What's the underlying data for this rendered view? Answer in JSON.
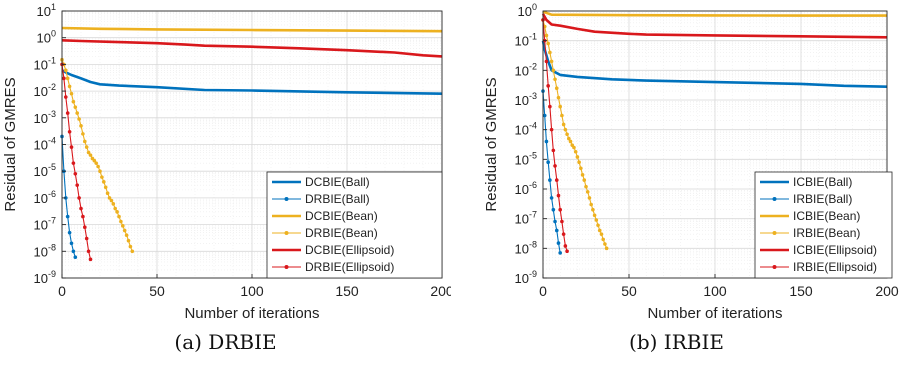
{
  "colors": {
    "blue": "#0072BD",
    "yellow": "#EDB120",
    "red": "#D9181C"
  },
  "chart_data": [
    {
      "type": "line",
      "caption": "(a) DRBIE",
      "xlabel": "Number of iterations",
      "ylabel": "Residual of GMRES",
      "xlim": [
        0,
        200
      ],
      "ylim_log10": [
        -9,
        1
      ],
      "y_scale": "log",
      "xticks": [
        "0",
        "50",
        "100",
        "150",
        "200"
      ],
      "grid": true,
      "legend_position": "bottom-right",
      "series": [
        {
          "name": "DCBIE(Ball)",
          "color": "blue",
          "marker": false,
          "lw": 2.6,
          "x": [
            0,
            2,
            5,
            10,
            15,
            20,
            30,
            50,
            75,
            100,
            150,
            200
          ],
          "y": [
            0.06,
            0.05,
            0.04,
            0.03,
            0.022,
            0.018,
            0.016,
            0.014,
            0.011,
            0.0105,
            0.009,
            0.008
          ]
        },
        {
          "name": "DRBIE(Ball)",
          "color": "blue",
          "marker": true,
          "lw": 1.1,
          "x": [
            0,
            1,
            2,
            3,
            4,
            5,
            6,
            7
          ],
          "y": [
            0.0002,
            1e-05,
            1e-06,
            2e-07,
            5e-08,
            2e-08,
            1e-08,
            6e-09
          ]
        },
        {
          "name": "DCBIE(Bean)",
          "color": "yellow",
          "marker": false,
          "lw": 2.6,
          "x": [
            0,
            20,
            50,
            100,
            150,
            200
          ],
          "y": [
            2.3,
            2.15,
            2.05,
            1.95,
            1.85,
            1.75
          ]
        },
        {
          "name": "DRBIE(Bean)",
          "color": "yellow",
          "marker": true,
          "lw": 1.1,
          "x": [
            0,
            1,
            2,
            3,
            4,
            5,
            6,
            7,
            8,
            9,
            10,
            11,
            12,
            13,
            14,
            15,
            16,
            17,
            18,
            19,
            20,
            21,
            22,
            23,
            24,
            25,
            26,
            27,
            28,
            29,
            30,
            31,
            32,
            33,
            34,
            35,
            36,
            37
          ],
          "y": [
            0.15,
            0.1,
            0.06,
            0.03,
            0.015,
            0.008,
            0.004,
            0.0025,
            0.0015,
            0.0009,
            0.0005,
            0.00025,
            0.00013,
            8e-05,
            5e-05,
            4e-05,
            3e-05,
            2.5e-05,
            2e-05,
            1.5e-05,
            1e-05,
            6e-06,
            4e-06,
            2.5e-06,
            1.5e-06,
            1e-06,
            8e-07,
            6e-07,
            4e-07,
            3e-07,
            2e-07,
            1.3e-07,
            9e-08,
            6e-08,
            4e-08,
            2.5e-08,
            1.5e-08,
            1e-08
          ]
        },
        {
          "name": "DCBIE(Ellipsoid)",
          "color": "red",
          "marker": false,
          "lw": 2.6,
          "x": [
            0,
            10,
            25,
            50,
            65,
            75,
            100,
            125,
            150,
            175,
            190,
            200
          ],
          "y": [
            0.8,
            0.75,
            0.7,
            0.62,
            0.55,
            0.5,
            0.46,
            0.4,
            0.34,
            0.28,
            0.22,
            0.2
          ]
        },
        {
          "name": "DRBIE(Ellipsoid)",
          "color": "red",
          "marker": true,
          "lw": 1.1,
          "x": [
            0,
            1,
            2,
            3,
            4,
            5,
            6,
            7,
            8,
            9,
            10,
            11,
            12,
            13,
            14,
            15
          ],
          "y": [
            0.1,
            0.03,
            0.006,
            0.0015,
            0.0003,
            8e-05,
            2e-05,
            8e-06,
            3e-06,
            1e-06,
            4e-07,
            2e-07,
            8e-08,
            3e-08,
            1e-08,
            5e-09
          ]
        }
      ]
    },
    {
      "type": "line",
      "caption": "(b) IRBIE",
      "xlabel": "Number of iterations",
      "ylabel": "Residual of GMRES",
      "xlim": [
        0,
        200
      ],
      "ylim_log10": [
        -9,
        0
      ],
      "y_scale": "log",
      "xticks": [
        "0",
        "50",
        "100",
        "150",
        "200"
      ],
      "grid": true,
      "legend_position": "bottom-right",
      "series": [
        {
          "name": "ICBIE(Ball)",
          "color": "blue",
          "marker": false,
          "lw": 2.6,
          "x": [
            0,
            1,
            3,
            5,
            10,
            20,
            40,
            60,
            100,
            150,
            175,
            200
          ],
          "y": [
            0.1,
            0.05,
            0.02,
            0.01,
            0.007,
            0.006,
            0.005,
            0.0045,
            0.004,
            0.0035,
            0.003,
            0.0028
          ]
        },
        {
          "name": "IRBIE(Ball)",
          "color": "blue",
          "marker": true,
          "lw": 1.1,
          "x": [
            0,
            1,
            2,
            3,
            4,
            5,
            6,
            7,
            8,
            9,
            10
          ],
          "y": [
            0.002,
            0.0003,
            4e-05,
            8e-06,
            2e-06,
            5e-07,
            2e-07,
            8e-08,
            4e-08,
            1.5e-08,
            7e-09
          ]
        },
        {
          "name": "ICBIE(Bean)",
          "color": "yellow",
          "marker": false,
          "lw": 2.6,
          "x": [
            0,
            5,
            50,
            100,
            150,
            200
          ],
          "y": [
            0.95,
            0.75,
            0.72,
            0.71,
            0.7,
            0.7
          ]
        },
        {
          "name": "IRBIE(Bean)",
          "color": "yellow",
          "marker": true,
          "lw": 1.1,
          "x": [
            0,
            1,
            2,
            3,
            4,
            5,
            6,
            7,
            8,
            9,
            10,
            11,
            12,
            13,
            14,
            15,
            16,
            17,
            18,
            19,
            20,
            21,
            22,
            23,
            24,
            25,
            26,
            27,
            28,
            29,
            30,
            31,
            32,
            33,
            34,
            35,
            36,
            37
          ],
          "y": [
            0.5,
            0.3,
            0.15,
            0.08,
            0.04,
            0.02,
            0.01,
            0.005,
            0.0025,
            0.0012,
            0.0006,
            0.0003,
            0.00015,
            0.0001,
            7e-05,
            5e-05,
            4e-05,
            3e-05,
            2.5e-05,
            1.8e-05,
            1.2e-05,
            8e-06,
            5e-06,
            3e-06,
            2e-06,
            1.2e-06,
            8e-07,
            5e-07,
            3e-07,
            2e-07,
            1.3e-07,
            9e-08,
            6e-08,
            4e-08,
            3e-08,
            2e-08,
            1.4e-08,
            1e-08
          ]
        },
        {
          "name": "ICBIE(Ellipsoid)",
          "color": "red",
          "marker": false,
          "lw": 2.6,
          "x": [
            0,
            2,
            5,
            10,
            20,
            30,
            50,
            60,
            100,
            150,
            200
          ],
          "y": [
            0.8,
            0.5,
            0.35,
            0.32,
            0.25,
            0.2,
            0.17,
            0.16,
            0.15,
            0.14,
            0.13
          ]
        },
        {
          "name": "IRBIE(Ellipsoid)",
          "color": "red",
          "marker": true,
          "lw": 1.1,
          "x": [
            0,
            1,
            2,
            3,
            4,
            5,
            6,
            7,
            8,
            9,
            10,
            11,
            12,
            13,
            14
          ],
          "y": [
            0.5,
            0.1,
            0.02,
            0.003,
            0.0006,
            0.0001,
            2e-05,
            6e-06,
            2e-06,
            6e-07,
            2e-07,
            8e-08,
            3e-08,
            1.2e-08,
            8e-09
          ]
        }
      ]
    }
  ]
}
